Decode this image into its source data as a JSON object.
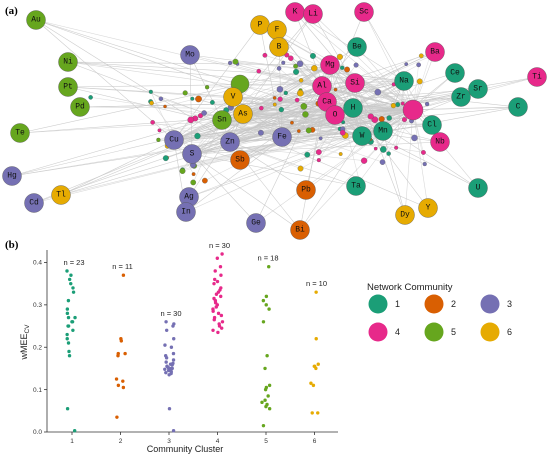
{
  "colors": {
    "c1": "#1b9e77",
    "c2": "#d95f02",
    "c3": "#7570b3",
    "c4": "#e7298a",
    "c5": "#66a61e",
    "c6": "#e6ab02",
    "edge": "#c8c8c8",
    "axis": "#333333"
  },
  "panel_a": {
    "label": "(a)",
    "nodes": [
      {
        "label": "Au",
        "c": "c5"
      },
      {
        "label": "Ni",
        "c": "c5"
      },
      {
        "label": "Pt",
        "c": "c5"
      },
      {
        "label": "Pd",
        "c": "c5"
      },
      {
        "label": "Te",
        "c": "c5"
      },
      {
        "label": "Hg",
        "c": "c3"
      },
      {
        "label": "Cd",
        "c": "c3"
      },
      {
        "label": "Tl",
        "c": "c6"
      },
      {
        "label": "Mo",
        "c": "c3"
      },
      {
        "label": "Cu",
        "c": "c3"
      },
      {
        "label": "S",
        "c": "c3"
      },
      {
        "label": "Zn",
        "c": "c3"
      },
      {
        "label": "Sn",
        "c": "c5"
      },
      {
        "label": "V",
        "c": "c6"
      },
      {
        "label": "As",
        "c": "c6"
      },
      {
        "label": "Fe",
        "c": "c3"
      },
      {
        "label": "Sb",
        "c": "c2"
      },
      {
        "label": "Ag",
        "c": "c3"
      },
      {
        "label": "In",
        "c": "c3"
      },
      {
        "label": "Ge",
        "c": "c3"
      },
      {
        "label": "Bi",
        "c": "c2"
      },
      {
        "label": "Pb",
        "c": "c2"
      },
      {
        "label": "Ta",
        "c": "c1"
      },
      {
        "label": "Dy",
        "c": "c6"
      },
      {
        "label": "Y",
        "c": "c6"
      },
      {
        "label": "P",
        "c": "c6"
      },
      {
        "label": "F",
        "c": "c6"
      },
      {
        "label": "B",
        "c": "c6"
      },
      {
        "label": "K",
        "c": "c4"
      },
      {
        "label": "Li",
        "c": "c4"
      },
      {
        "label": "Sc",
        "c": "c4"
      },
      {
        "label": "Be",
        "c": "c1"
      },
      {
        "label": "Mg",
        "c": "c4"
      },
      {
        "label": "Ba",
        "c": "c4"
      },
      {
        "label": "Si",
        "c": "c4"
      },
      {
        "label": "Al",
        "c": "c4"
      },
      {
        "label": "Ca",
        "c": "c4"
      },
      {
        "label": "O",
        "c": "c4"
      },
      {
        "label": "H",
        "c": "c1"
      },
      {
        "label": "Na",
        "c": "c1"
      },
      {
        "label": "Ce",
        "c": "c1"
      },
      {
        "label": "Sr",
        "c": "c1"
      },
      {
        "label": "Zr",
        "c": "c1"
      },
      {
        "label": "Ti",
        "c": "c4"
      },
      {
        "label": "C",
        "c": "c1"
      },
      {
        "label": "Cl",
        "c": "c1"
      },
      {
        "label": "W",
        "c": "c1"
      },
      {
        "label": "Mn",
        "c": "c1"
      },
      {
        "label": "Nb",
        "c": "c4"
      },
      {
        "label": "U",
        "c": "c1"
      }
    ]
  },
  "chart_data": {
    "type": "scatter",
    "panel_label": "(b)",
    "xlabel": "Community Cluster",
    "ylabel": "wMEE",
    "ylabel_sub": "CV",
    "x_ticks": [
      "1",
      "2",
      "3",
      "4",
      "5",
      "6"
    ],
    "y_ticks": [
      "0.0",
      "0.1",
      "0.2",
      "0.3",
      "0.4"
    ],
    "ylim": [
      0,
      0.42
    ],
    "legend": {
      "title": "Network Community",
      "placement": "right",
      "items": [
        {
          "label": "1",
          "c": "c1"
        },
        {
          "label": "2",
          "c": "c2"
        },
        {
          "label": "3",
          "c": "c3"
        },
        {
          "label": "4",
          "c": "c4"
        },
        {
          "label": "5",
          "c": "c5"
        },
        {
          "label": "6",
          "c": "c6"
        }
      ]
    },
    "clusters": [
      {
        "x": 1,
        "n_label": "n = 23",
        "c": "c1",
        "values": [
          0.38,
          0.37,
          0.36,
          0.35,
          0.34,
          0.33,
          0.31,
          0.29,
          0.28,
          0.27,
          0.27,
          0.26,
          0.26,
          0.25,
          0.25,
          0.24,
          0.23,
          0.22,
          0.21,
          0.19,
          0.18,
          0.055,
          0.003
        ]
      },
      {
        "x": 2,
        "n_label": "n = 11",
        "c": "c2",
        "values": [
          0.37,
          0.22,
          0.215,
          0.185,
          0.185,
          0.18,
          0.125,
          0.12,
          0.11,
          0.105,
          0.035
        ]
      },
      {
        "x": 3,
        "n_label": "n = 30",
        "c": "c3",
        "values": [
          0.26,
          0.255,
          0.25,
          0.24,
          0.22,
          0.205,
          0.2,
          0.185,
          0.18,
          0.175,
          0.17,
          0.165,
          0.162,
          0.16,
          0.158,
          0.155,
          0.155,
          0.152,
          0.15,
          0.15,
          0.148,
          0.147,
          0.145,
          0.145,
          0.142,
          0.14,
          0.138,
          0.135,
          0.055,
          0.003
        ]
      },
      {
        "x": 4,
        "n_label": "n = 30",
        "c": "c4",
        "values": [
          0.42,
          0.41,
          0.39,
          0.38,
          0.37,
          0.36,
          0.355,
          0.35,
          0.34,
          0.335,
          0.33,
          0.325,
          0.32,
          0.315,
          0.31,
          0.305,
          0.3,
          0.295,
          0.29,
          0.285,
          0.28,
          0.275,
          0.27,
          0.265,
          0.26,
          0.255,
          0.25,
          0.245,
          0.24,
          0.235
        ]
      },
      {
        "x": 5,
        "n_label": "n = 18",
        "c": "c5",
        "values": [
          0.39,
          0.32,
          0.31,
          0.3,
          0.29,
          0.26,
          0.18,
          0.15,
          0.11,
          0.105,
          0.1,
          0.085,
          0.075,
          0.07,
          0.065,
          0.06,
          0.055,
          0.015
        ]
      },
      {
        "x": 6,
        "n_label": "n = 10",
        "c": "c6",
        "values": [
          0.33,
          0.22,
          0.16,
          0.155,
          0.155,
          0.15,
          0.115,
          0.11,
          0.045,
          0.045
        ]
      }
    ]
  }
}
